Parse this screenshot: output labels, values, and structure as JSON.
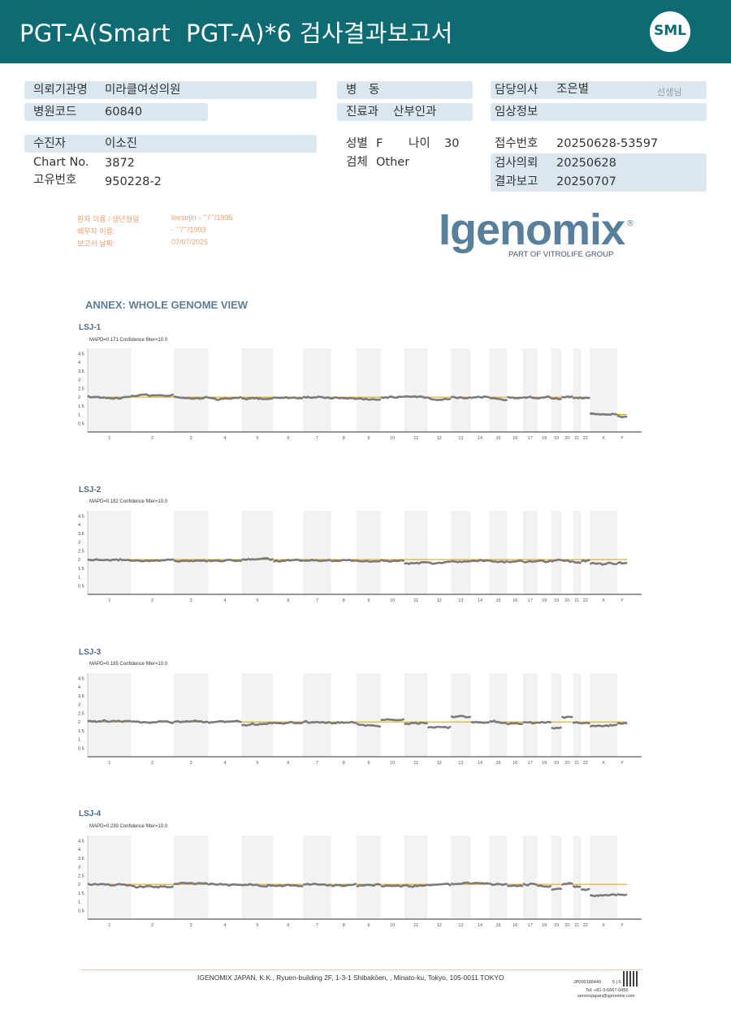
{
  "header": {
    "title": "PGT-A(Smart  PGT-A)*6 검사결과보고서",
    "logo_text": "SML"
  },
  "info": {
    "institution_label": "의뢰기관명",
    "institution": "미라클여성의원",
    "hospital_code_label": "병원코드",
    "hospital_code": "60840",
    "ward_label": "병 동",
    "department_label": "진료과",
    "department": "산부인과",
    "doctor_label": "담당의사",
    "doctor": "조은별",
    "doctor_suffix": "선생님",
    "clinical_label": "임상정보",
    "patient_label": "수진자",
    "patient": "이소진",
    "chart_label": "Chart No.",
    "chart": "3872",
    "unique_label": "고유번호",
    "unique": "950228-2",
    "sex_label": "성별",
    "sex": "F",
    "age_label": "나이",
    "age": "30",
    "specimen_label": "검체",
    "specimen": "Other",
    "receipt_label": "접수번호",
    "receipt": "20250628-53597",
    "request_label": "검사의뢰",
    "request": "20250628",
    "report_label": "결과보고",
    "report": "20250707"
  },
  "patient_block": {
    "name_label": "환자 이름 / 생년월일",
    "name_value": "leesojin -  ˜˜/˜˜/1995",
    "spouse_label": "배우자 이름:",
    "spouse_value": "-  ˜˜/˜˜/1993",
    "date_label": "보고서 날짜:",
    "date_value": "07/07/2025"
  },
  "brand": {
    "name": "Igenomix",
    "registered": "®",
    "tagline": "PART OF VITROLIFE GROUP"
  },
  "annex_title": "ANNEX: WHOLE GENOME VIEW",
  "colors": {
    "header": "#0e6b73",
    "info_box": "#dbe7ee",
    "trace": "#7a7a7a",
    "baseline": "#d4a017",
    "band": "#f2f2f2",
    "brand": "#58809c"
  },
  "chart_data": [
    {
      "type": "line",
      "name": "LSJ-1",
      "mapd": "MAPD=0.171 Confidence filter=10.0",
      "ylim": [
        0,
        4.8
      ],
      "yticks": [
        "4.5",
        "4",
        "3.5",
        "3",
        "2.5",
        "2",
        "1.5",
        "1",
        "0.5"
      ],
      "categories": [
        "1",
        "2",
        "3",
        "4",
        "5",
        "6",
        "7",
        "8",
        "9",
        "10",
        "11",
        "12",
        "13",
        "14",
        "15",
        "16",
        "17",
        "18",
        "19",
        "20",
        "21",
        "22",
        "X",
        "Y"
      ],
      "baseline": 2.0,
      "values": [
        2.0,
        2.1,
        2.0,
        1.95,
        1.9,
        2.0,
        2.0,
        1.95,
        1.9,
        2.0,
        2.0,
        1.95,
        2.0,
        1.95,
        1.9,
        1.95,
        1.95,
        1.95,
        1.9,
        2.0,
        1.95,
        1.9,
        1.1,
        0.9
      ],
      "segment_baselines": {
        "X": 1.0,
        "Y": 1.0
      }
    },
    {
      "type": "line",
      "name": "LSJ-2",
      "mapd": "MAPD=0.182 Confidence filter=10.0",
      "ylim": [
        0,
        4.8
      ],
      "yticks": [
        "4.5",
        "4",
        "3.5",
        "3",
        "2.5",
        "2",
        "1.5",
        "1",
        "0.5"
      ],
      "categories": [
        "1",
        "2",
        "3",
        "4",
        "5",
        "6",
        "7",
        "8",
        "9",
        "10",
        "11",
        "12",
        "13",
        "14",
        "15",
        "16",
        "17",
        "18",
        "19",
        "20",
        "21",
        "22",
        "X",
        "Y"
      ],
      "baseline": 2.0,
      "values": [
        2.0,
        1.95,
        1.95,
        1.95,
        2.0,
        1.9,
        1.95,
        1.95,
        1.9,
        1.95,
        1.8,
        1.8,
        1.9,
        1.9,
        1.9,
        1.9,
        1.85,
        1.9,
        1.95,
        1.9,
        1.85,
        1.9,
        1.75,
        1.8
      ]
    },
    {
      "type": "line",
      "name": "LSJ-3",
      "mapd": "MAPD=0.185 Confidence filter=10.0",
      "ylim": [
        0,
        4.8
      ],
      "yticks": [
        "4.5",
        "4",
        "3.5",
        "3",
        "2.5",
        "2",
        "1.5",
        "1",
        "0.5"
      ],
      "categories": [
        "1",
        "2",
        "3",
        "4",
        "5",
        "6",
        "7",
        "8",
        "9",
        "10",
        "11",
        "12",
        "13",
        "14",
        "15",
        "16",
        "17",
        "18",
        "19",
        "20",
        "21",
        "22",
        "X",
        "Y"
      ],
      "baseline": 2.0,
      "values": [
        2.05,
        2.0,
        2.0,
        1.95,
        1.85,
        1.95,
        2.0,
        1.95,
        1.85,
        2.1,
        1.9,
        1.7,
        2.3,
        1.95,
        2.0,
        1.9,
        2.0,
        1.95,
        1.65,
        2.3,
        1.95,
        1.95,
        1.75,
        1.9
      ]
    },
    {
      "type": "line",
      "name": "LSJ-4",
      "mapd": "MAPD=0.239 Confidence filter=10.0",
      "ylim": [
        0,
        4.8
      ],
      "yticks": [
        "4.5",
        "4",
        "3.5",
        "3",
        "2.5",
        "2",
        "1.5",
        "1",
        "0.5"
      ],
      "categories": [
        "1",
        "2",
        "3",
        "4",
        "5",
        "6",
        "7",
        "8",
        "9",
        "10",
        "11",
        "12",
        "13",
        "14",
        "15",
        "16",
        "17",
        "18",
        "19",
        "20",
        "21",
        "22",
        "X",
        "Y"
      ],
      "baseline": 2.0,
      "values": [
        2.0,
        1.9,
        2.05,
        2.0,
        1.95,
        1.9,
        1.95,
        1.95,
        1.9,
        1.9,
        1.95,
        1.95,
        2.0,
        2.05,
        2.0,
        1.9,
        2.0,
        1.9,
        1.7,
        2.0,
        1.85,
        1.7,
        1.4,
        1.45
      ]
    }
  ],
  "footer": {
    "address": "IGENOMIX JAPAN, K.K., Ryuen-building 2F, 1-3-1 Shibakōen, , Minato-ku, Tokyo, 105-0011 TOKYO",
    "code": "JP000186449",
    "page": "5 | 6",
    "tel": "Tel: +81-3-6667-0456",
    "email": "servicejapan@igenomix.com"
  }
}
